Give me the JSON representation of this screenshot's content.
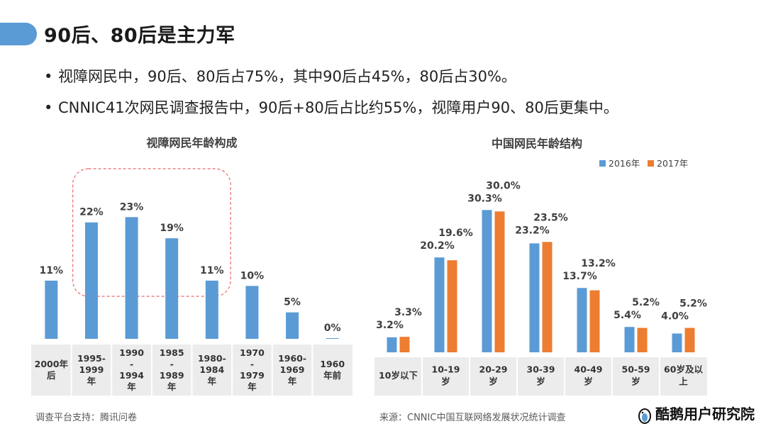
{
  "header": {
    "title": "90后、80后是主力军"
  },
  "bullets": [
    "视障网民中，90后、80后占75%，其中90后占45%，80后占30%。",
    "CNNIC41次网民调查报告中，90后+80后占比约55%，视障用户90、80后更集中。"
  ],
  "colors": {
    "accent": "#5b9bd5",
    "series2": "#ed7d31",
    "table_bg": "#ececec",
    "highlight": "#e86a6a"
  },
  "chart_data": [
    {
      "type": "bar",
      "title": "视障网民年龄构成",
      "categories": [
        [
          "2000年",
          "后"
        ],
        [
          "1995-",
          "1999",
          "年"
        ],
        [
          "1990",
          "-",
          "1994",
          "年"
        ],
        [
          "1985",
          "-",
          "1989",
          "年"
        ],
        [
          "1980-",
          "1984",
          "年"
        ],
        [
          "1970",
          "-",
          "1979",
          "年"
        ],
        [
          "1960-",
          "1969",
          "年"
        ],
        [
          "1960",
          "年前"
        ]
      ],
      "values": [
        11,
        22,
        23,
        19,
        11,
        10,
        5,
        0
      ],
      "labels": [
        "11%",
        "22%",
        "23%",
        "19%",
        "11%",
        "10%",
        "5%",
        "0%"
      ],
      "highlight_range": [
        1,
        4
      ],
      "ylim": [
        0,
        30
      ]
    },
    {
      "type": "bar",
      "title": "中国网民年龄结构",
      "categories": [
        [
          "10岁以下"
        ],
        [
          "10-19",
          "岁"
        ],
        [
          "20-29",
          "岁"
        ],
        [
          "30-39",
          "岁"
        ],
        [
          "40-49",
          "岁"
        ],
        [
          "50-59",
          "岁"
        ],
        [
          "60岁及以",
          "上"
        ]
      ],
      "series": [
        {
          "name": "2016年",
          "values": [
            3.2,
            20.2,
            30.3,
            23.2,
            13.7,
            5.4,
            4.0
          ],
          "labels": [
            "3.2%",
            "20.2%",
            "30.3%",
            "23.2%",
            "13.7%",
            "5.4%",
            "4.0%"
          ]
        },
        {
          "name": "2017年",
          "values": [
            3.3,
            19.6,
            30.0,
            23.5,
            13.2,
            5.2,
            5.2
          ],
          "labels": [
            "3.3%",
            "19.6%",
            "30.0%",
            "23.5%",
            "13.2%",
            "5.2%",
            "5.2%"
          ]
        }
      ],
      "legend_position": "top-right",
      "ylim": [
        0,
        32
      ]
    }
  ],
  "footer": {
    "left_note": "调查平台支持：腾讯问卷",
    "source_note": "来源：CNNIC中国互联网络发展状况统计调查",
    "brand": "酷鹅用户研究院"
  }
}
